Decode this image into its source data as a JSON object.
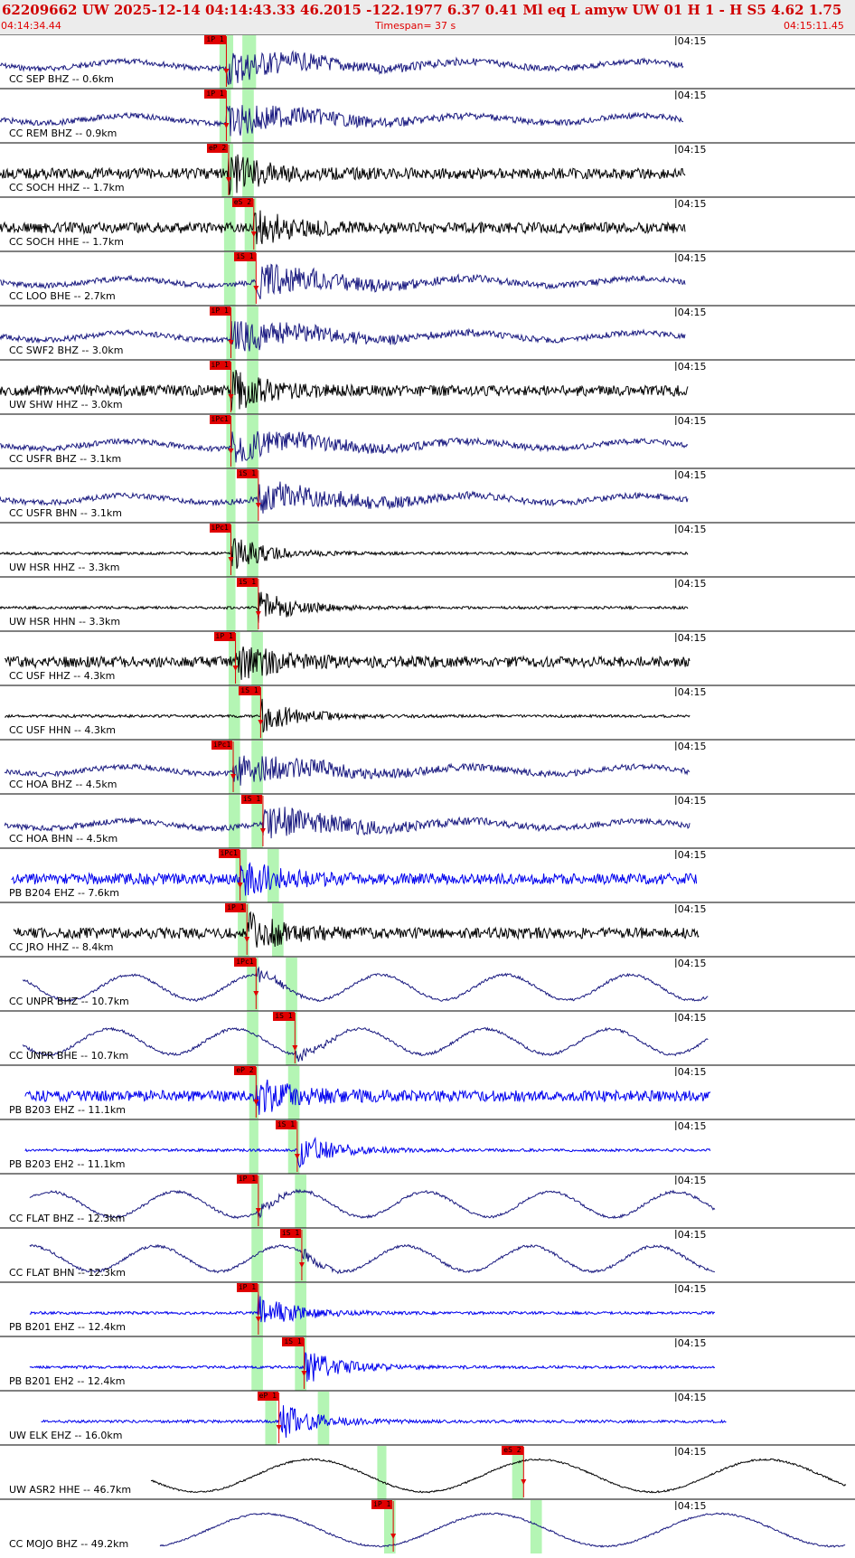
{
  "header": {
    "title": "62209662 UW 2025-12-14 04:14:43.33   46.2015 -122.1977   6.37  0.41 Ml  eq  L amyw     UW 01  H   1  -  H S5     4.62  1.75",
    "start_time": "04:14:34.44",
    "timespan": "Timespan=  37 s",
    "end_time": "04:15:11.45"
  },
  "tick_label": "04:15",
  "colors": {
    "black": "#000000",
    "navy": "#1a1a80",
    "blue": "#0000ee",
    "red": "#e00000",
    "green": "#b4f5b4"
  },
  "chart_data": {
    "type": "line",
    "x_unit": "seconds since 04:14:34.44",
    "xlim": [
      0,
      37
    ],
    "tick_time": "04:15",
    "channels": [
      {
        "label": "CC SEP BHZ -- 0.6km",
        "color": "navy",
        "picks": [
          {
            "label": "iP 1",
            "t": 9.9
          }
        ],
        "green": [
          [
            9.6,
            10.2
          ],
          [
            10.6,
            11.2
          ]
        ],
        "style": "ring",
        "start": 0,
        "end": 29.9
      },
      {
        "label": "CC REM BHZ -- 0.9km",
        "color": "navy",
        "picks": [
          {
            "label": "iP 1",
            "t": 9.9
          }
        ],
        "green": [
          [
            9.6,
            10.1
          ],
          [
            10.6,
            11.1
          ]
        ],
        "style": "ring",
        "start": 0,
        "end": 29.9
      },
      {
        "label": "CC SOCH HHZ -- 1.7km",
        "color": "black",
        "picks": [
          {
            "label": "eP 2",
            "t": 10.0
          }
        ],
        "green": [
          [
            9.7,
            10.2
          ],
          [
            10.6,
            11.1
          ]
        ],
        "style": "noise",
        "start": 0,
        "end": 30.0
      },
      {
        "label": "CC SOCH HHE -- 1.7km",
        "color": "black",
        "picks": [
          {
            "label": "eS 2",
            "t": 11.1
          }
        ],
        "green": [
          [
            9.8,
            10.3
          ],
          [
            10.7,
            11.2
          ]
        ],
        "style": "noise",
        "start": 0,
        "end": 30.0
      },
      {
        "label": "CC LOO BHE -- 2.7km",
        "color": "navy",
        "picks": [
          {
            "label": "iS 1",
            "t": 11.2
          }
        ],
        "green": [
          [
            9.8,
            10.3
          ],
          [
            10.8,
            11.2
          ]
        ],
        "style": "ring",
        "start": 0,
        "end": 30.0
      },
      {
        "label": "CC SWF2 BHZ -- 3.0km",
        "color": "navy",
        "picks": [
          {
            "label": "iP 1",
            "t": 10.1
          }
        ],
        "green": [
          [
            9.9,
            10.3
          ],
          [
            10.8,
            11.3
          ]
        ],
        "style": "ring",
        "start": 0,
        "end": 30.0
      },
      {
        "label": "UW SHW HHZ -- 3.0km",
        "color": "black",
        "picks": [
          {
            "label": "iP 1",
            "t": 10.1
          }
        ],
        "green": [
          [
            9.9,
            10.3
          ],
          [
            10.8,
            11.3
          ]
        ],
        "style": "noise",
        "start": 0,
        "end": 30.1
      },
      {
        "label": "CC USFR BHZ -- 3.1km",
        "color": "navy",
        "picks": [
          {
            "label": "iPc1",
            "t": 10.1
          }
        ],
        "green": [
          [
            9.9,
            10.3
          ],
          [
            10.8,
            11.3
          ]
        ],
        "style": "ring",
        "start": 0,
        "end": 30.1
      },
      {
        "label": "CC USFR BHN -- 3.1km",
        "color": "navy",
        "picks": [
          {
            "label": "iS 1",
            "t": 11.3
          }
        ],
        "green": [
          [
            9.9,
            10.3
          ],
          [
            10.8,
            11.3
          ]
        ],
        "style": "ring",
        "start": 0,
        "end": 30.1
      },
      {
        "label": "UW HSR HHZ -- 3.3km",
        "color": "black",
        "picks": [
          {
            "label": "iPc1",
            "t": 10.1
          }
        ],
        "green": [
          [
            9.9,
            10.3
          ],
          [
            10.8,
            11.3
          ]
        ],
        "style": "burst",
        "start": 0,
        "end": 30.1
      },
      {
        "label": "UW HSR HHN -- 3.3km",
        "color": "black",
        "picks": [
          {
            "label": "iS 1",
            "t": 11.3
          }
        ],
        "green": [
          [
            9.9,
            10.3
          ],
          [
            10.8,
            11.3
          ]
        ],
        "style": "burst",
        "start": 0,
        "end": 30.1
      },
      {
        "label": "CC USF HHZ -- 4.3km",
        "color": "black",
        "picks": [
          {
            "label": "iP 1",
            "t": 10.3
          }
        ],
        "green": [
          [
            10.0,
            10.5
          ],
          [
            11.0,
            11.5
          ]
        ],
        "style": "noise",
        "start": 0.2,
        "end": 30.2
      },
      {
        "label": "CC USF HHN -- 4.3km",
        "color": "black",
        "picks": [
          {
            "label": "iS 1",
            "t": 11.4
          }
        ],
        "green": [
          [
            10.0,
            10.5
          ],
          [
            11.0,
            11.5
          ]
        ],
        "style": "burst",
        "start": 0.2,
        "end": 30.2
      },
      {
        "label": "CC HOA BHZ -- 4.5km",
        "color": "navy",
        "picks": [
          {
            "label": "iPc1",
            "t": 10.2
          }
        ],
        "green": [
          [
            10.0,
            10.5
          ],
          [
            11.0,
            11.5
          ]
        ],
        "style": "ring",
        "start": 0.2,
        "end": 30.2
      },
      {
        "label": "CC HOA BHN -- 4.5km",
        "color": "navy",
        "picks": [
          {
            "label": "iS 1",
            "t": 11.5
          }
        ],
        "green": [
          [
            10.0,
            10.5
          ],
          [
            11.0,
            11.5
          ]
        ],
        "style": "ring",
        "start": 0.2,
        "end": 30.2
      },
      {
        "label": "PB B204 EHZ -- 7.6km",
        "color": "blue",
        "picks": [
          {
            "label": "iPc1",
            "t": 10.5
          }
        ],
        "green": [
          [
            10.3,
            10.8
          ],
          [
            11.7,
            12.2
          ]
        ],
        "style": "noise",
        "start": 0.5,
        "end": 30.5
      },
      {
        "label": "CC JRO HHZ -- 8.4km",
        "color": "black",
        "picks": [
          {
            "label": "iP 1",
            "t": 10.8
          }
        ],
        "green": [
          [
            10.4,
            10.9
          ],
          [
            11.9,
            12.4
          ]
        ],
        "style": "noise",
        "start": 0.6,
        "end": 30.6
      },
      {
        "label": "CC UNPR BHZ -- 10.7km",
        "color": "navy",
        "picks": [
          {
            "label": "iPc1",
            "t": 11.2
          }
        ],
        "green": [
          [
            10.8,
            11.3
          ],
          [
            12.5,
            13.0
          ]
        ],
        "style": "wave",
        "start": 1.0,
        "end": 31.0
      },
      {
        "label": "CC UNPR BHE -- 10.7km",
        "color": "navy",
        "picks": [
          {
            "label": "iS 1",
            "t": 12.9
          }
        ],
        "green": [
          [
            10.8,
            11.3
          ],
          [
            12.5,
            13.0
          ]
        ],
        "style": "wave",
        "start": 1.0,
        "end": 31.0
      },
      {
        "label": "PB B203 EHZ -- 11.1km",
        "color": "blue",
        "picks": [
          {
            "label": "eP 2",
            "t": 11.2
          }
        ],
        "green": [
          [
            10.9,
            11.3
          ],
          [
            12.6,
            13.1
          ]
        ],
        "style": "noise",
        "start": 1.1,
        "end": 31.1
      },
      {
        "label": "PB B203 EH2 -- 11.1km",
        "color": "blue",
        "picks": [
          {
            "label": "iS 1",
            "t": 13.0
          }
        ],
        "green": [
          [
            10.9,
            11.3
          ],
          [
            12.6,
            13.1
          ]
        ],
        "style": "burst",
        "start": 1.1,
        "end": 31.1
      },
      {
        "label": "CC FLAT BHZ -- 12.3km",
        "color": "navy",
        "picks": [
          {
            "label": "iP 1",
            "t": 11.3
          }
        ],
        "green": [
          [
            11.0,
            11.5
          ],
          [
            12.9,
            13.4
          ]
        ],
        "style": "wave",
        "start": 1.3,
        "end": 31.3
      },
      {
        "label": "CC FLAT BHN -- 12.3km",
        "color": "navy",
        "picks": [
          {
            "label": "iS 1",
            "t": 13.2
          }
        ],
        "green": [
          [
            11.0,
            11.5
          ],
          [
            12.9,
            13.4
          ]
        ],
        "style": "wave",
        "start": 1.3,
        "end": 31.3
      },
      {
        "label": "PB B201 EHZ -- 12.4km",
        "color": "blue",
        "picks": [
          {
            "label": "iP 1",
            "t": 11.3
          }
        ],
        "green": [
          [
            11.0,
            11.5
          ],
          [
            12.9,
            13.4
          ]
        ],
        "style": "burst",
        "start": 1.3,
        "end": 31.3
      },
      {
        "label": "PB B201 EH2 -- 12.4km",
        "color": "blue",
        "picks": [
          {
            "label": "iS 1",
            "t": 13.3
          }
        ],
        "green": [
          [
            11.0,
            11.5
          ],
          [
            12.9,
            13.4
          ]
        ],
        "style": "burst",
        "start": 1.3,
        "end": 31.3
      },
      {
        "label": "UW ELK EHZ -- 16.0km",
        "color": "blue",
        "picks": [
          {
            "label": "eP 1",
            "t": 12.2
          }
        ],
        "green": [
          [
            11.6,
            12.1
          ],
          [
            13.9,
            14.4
          ]
        ],
        "style": "burst",
        "start": 1.8,
        "end": 31.8
      },
      {
        "label": "UW ASR2 HHE -- 46.7km",
        "color": "black",
        "picks": [
          {
            "label": "eS 2",
            "t": 22.9
          }
        ],
        "green": [
          [
            16.5,
            16.9
          ],
          [
            22.4,
            22.9
          ]
        ],
        "style": "slow",
        "start": 6.6,
        "end": 37
      },
      {
        "label": "CC MOJO BHZ -- 49.2km",
        "color": "navy",
        "picks": [
          {
            "label": "iP 1",
            "t": 17.2
          }
        ],
        "green": [
          [
            16.8,
            17.3
          ],
          [
            23.2,
            23.7
          ]
        ],
        "style": "slow",
        "start": 7.0,
        "end": 37
      }
    ]
  }
}
